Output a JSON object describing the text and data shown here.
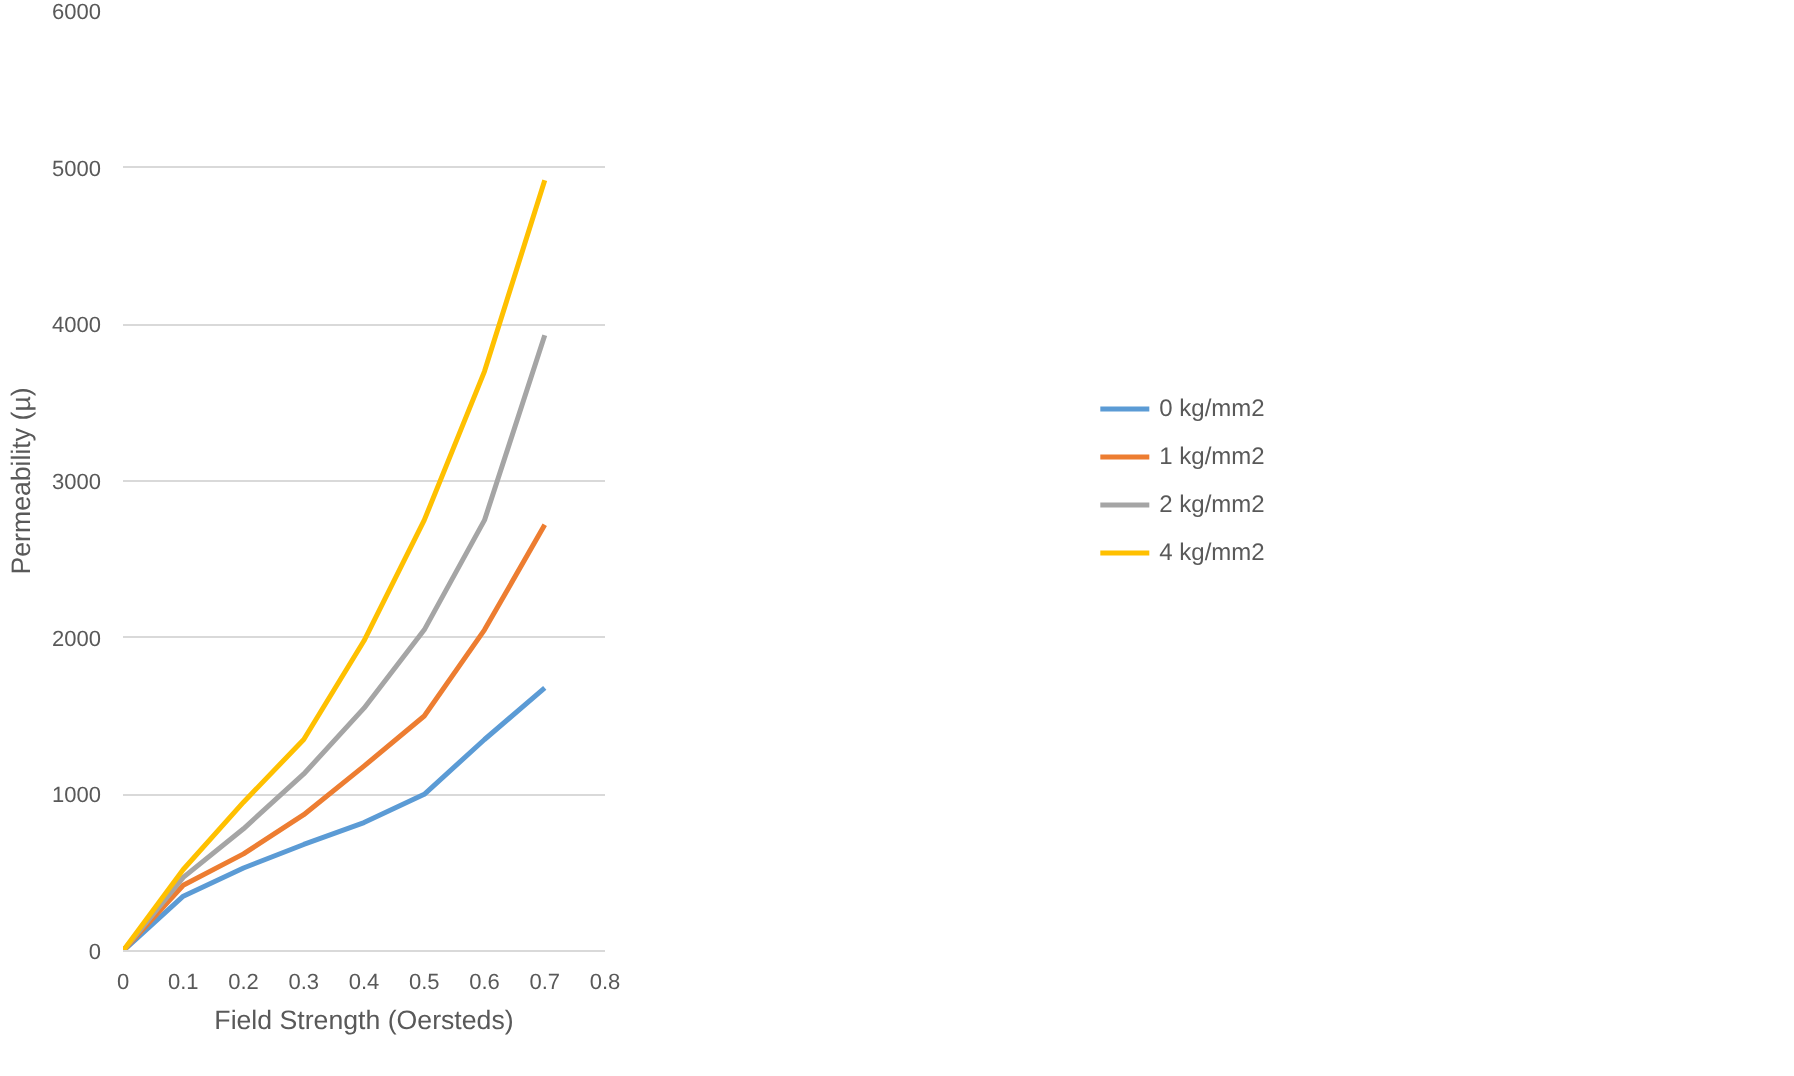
{
  "chart_data": {
    "type": "line",
    "xlabel": "Field Strength (Oersteds)",
    "ylabel": "Permeability (µ)",
    "x": [
      0,
      0.1,
      0.2,
      0.3,
      0.4,
      0.5,
      0.6,
      0.7
    ],
    "series": [
      {
        "name": "0 kg/mm2",
        "color": "#5b9bd5",
        "values": [
          0,
          350,
          530,
          680,
          820,
          1000,
          1350,
          1680
        ]
      },
      {
        "name": "1 kg/mm2",
        "color": "#ed7d31",
        "values": [
          0,
          420,
          620,
          870,
          1180,
          1500,
          2050,
          2720
        ]
      },
      {
        "name": "2 kg/mm2",
        "color": "#a5a5a5",
        "values": [
          0,
          470,
          780,
          1130,
          1550,
          2050,
          2750,
          3930
        ]
      },
      {
        "name": "4 kg/mm2",
        "color": "#ffc000",
        "values": [
          0,
          520,
          950,
          1350,
          1980,
          2750,
          3700,
          4920
        ]
      }
    ],
    "xlim": [
      0,
      0.8
    ],
    "xticks": [
      0,
      0.1,
      0.2,
      0.3,
      0.4,
      0.5,
      0.6,
      0.7,
      0.8
    ],
    "ylim": [
      0,
      6000
    ],
    "yticks": [
      0,
      1000,
      2000,
      3000,
      4000,
      5000,
      6000
    ],
    "grid": "y",
    "legend": "right",
    "marker": "none",
    "line_style": "solid"
  }
}
